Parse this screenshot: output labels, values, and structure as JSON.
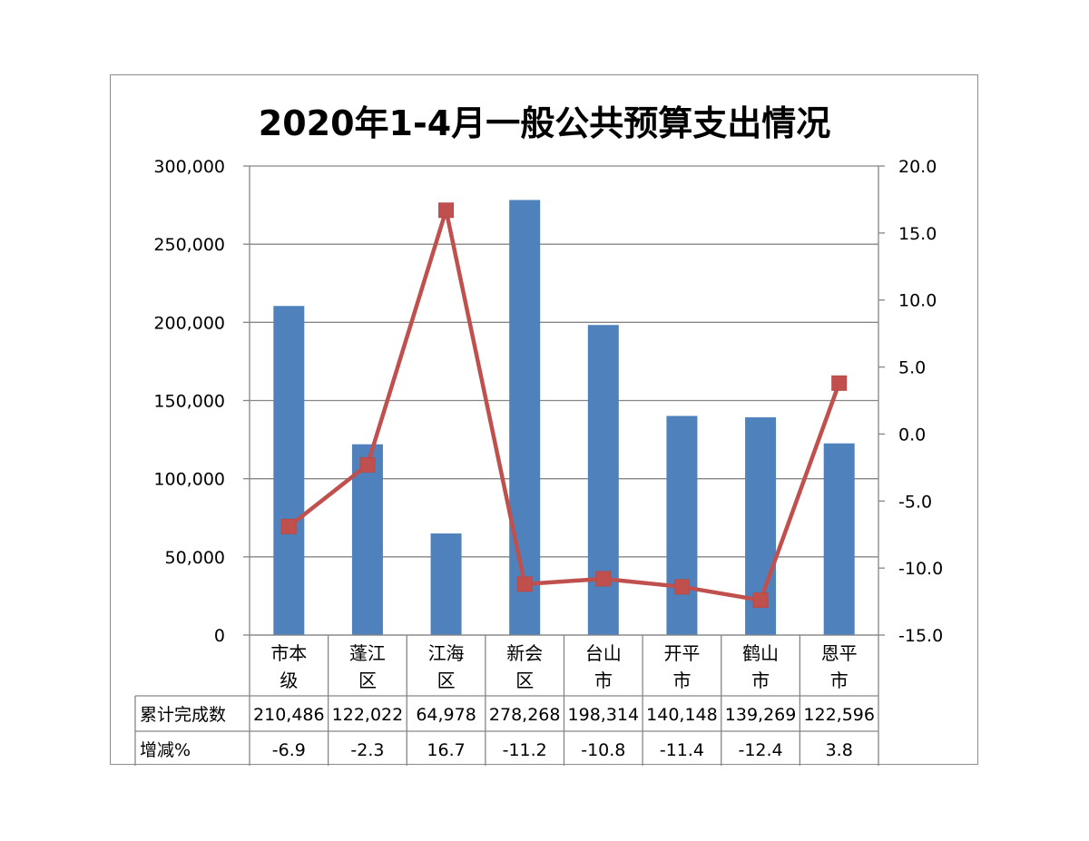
{
  "chart_data": {
    "type": "bar+line",
    "title": "2020年1-4月一般公共预算支出情况",
    "categories": [
      "市本级",
      "蓬江区",
      "江海区",
      "新会区",
      "台山市",
      "开平市",
      "鹤山市",
      "恩平市"
    ],
    "category_lines": [
      [
        "市本",
        "级"
      ],
      [
        "蓬江",
        "区"
      ],
      [
        "江海",
        "区"
      ],
      [
        "新会",
        "区"
      ],
      [
        "台山",
        "市"
      ],
      [
        "开平",
        "市"
      ],
      [
        "鹤山",
        "市"
      ],
      [
        "恩平",
        "市"
      ]
    ],
    "series": [
      {
        "name": "累计完成数",
        "type": "bar",
        "axis": "left",
        "color": "#4f81bd",
        "values": [
          210486,
          122022,
          64978,
          278268,
          198314,
          140148,
          139269,
          122596
        ],
        "labels": [
          "210,486",
          "122,022",
          "64,978",
          "278,268",
          "198,314",
          "140,148",
          "139,269",
          "122,596"
        ]
      },
      {
        "name": "增减%",
        "type": "line",
        "axis": "right",
        "color": "#c0504d",
        "marker": "square",
        "values": [
          -6.9,
          -2.3,
          16.7,
          -11.2,
          -10.8,
          -11.4,
          -12.4,
          3.8
        ],
        "labels": [
          "-6.9",
          "-2.3",
          "16.7",
          "-11.2",
          "-10.8",
          "-11.4",
          "-12.4",
          "3.8"
        ]
      }
    ],
    "left_axis": {
      "ylim": [
        0,
        300000
      ],
      "ticks": [
        "300,000",
        "250,000",
        "200,000",
        "150,000",
        "100,000",
        "50,000",
        "0"
      ]
    },
    "right_axis": {
      "ylim": [
        -15,
        20
      ],
      "ticks": [
        "20.0",
        "15.0",
        "10.0",
        "5.0",
        "0.0",
        "-5.0",
        "-10.0",
        "-15.0"
      ]
    },
    "grid": true,
    "legend": "data table below chart"
  },
  "colors": {
    "bar": "#4f81bd",
    "line": "#c0504d",
    "grid": "#868686",
    "frame": "#8c8c8c"
  }
}
